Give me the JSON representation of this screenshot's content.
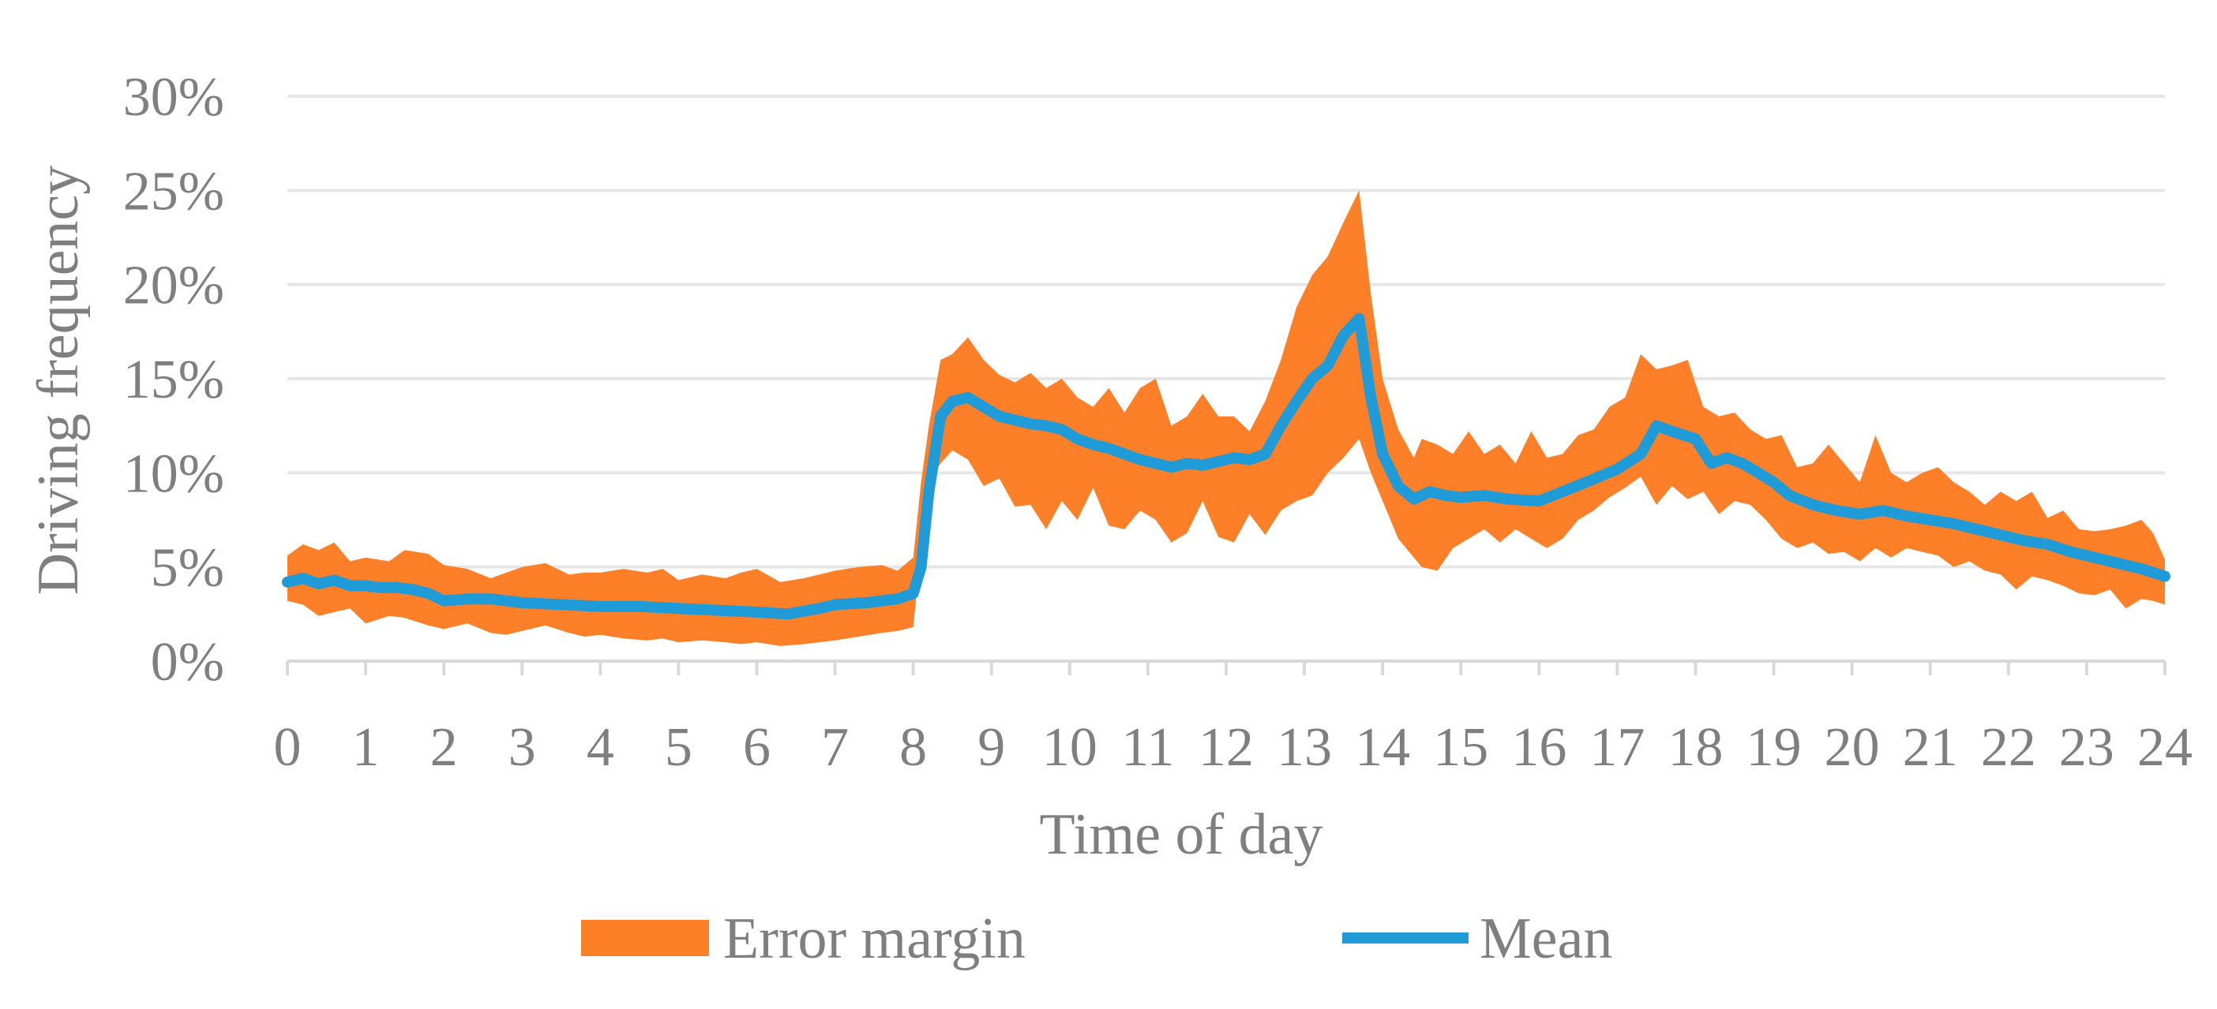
{
  "chart_data": {
    "type": "area",
    "title": "",
    "xlabel": "Time of day",
    "ylabel": "Driving frequency",
    "xlim": [
      0,
      24
    ],
    "ylim": [
      0,
      30
    ],
    "x_ticks": [
      "0",
      "1",
      "2",
      "3",
      "4",
      "5",
      "6",
      "7",
      "8",
      "9",
      "10",
      "11",
      "12",
      "13",
      "14",
      "15",
      "16",
      "17",
      "18",
      "19",
      "20",
      "21",
      "22",
      "23",
      "24"
    ],
    "y_ticks": [
      "0%",
      "5%",
      "10%",
      "15%",
      "20%",
      "25%",
      "30%"
    ],
    "grid": true,
    "legend_position": "bottom",
    "colors": {
      "band": "#fd7f28",
      "mean": "#1f9bd7",
      "grid": "#e6e6e6",
      "text": "#7f7f7f"
    },
    "series": [
      {
        "name": "Error margin",
        "kind": "band",
        "points": [
          [
            0.0,
            5.6,
            3.2
          ],
          [
            0.2,
            6.2,
            3.0
          ],
          [
            0.4,
            5.9,
            2.4
          ],
          [
            0.6,
            6.3,
            2.6
          ],
          [
            0.8,
            5.3,
            2.8
          ],
          [
            1.0,
            5.5,
            2.0
          ],
          [
            1.3,
            5.3,
            2.4
          ],
          [
            1.5,
            5.9,
            2.3
          ],
          [
            1.8,
            5.7,
            1.9
          ],
          [
            2.0,
            5.1,
            1.7
          ],
          [
            2.3,
            4.9,
            2.0
          ],
          [
            2.6,
            4.4,
            1.5
          ],
          [
            2.8,
            4.7,
            1.4
          ],
          [
            3.0,
            5.0,
            1.6
          ],
          [
            3.3,
            5.2,
            1.9
          ],
          [
            3.6,
            4.6,
            1.5
          ],
          [
            3.8,
            4.7,
            1.3
          ],
          [
            4.0,
            4.7,
            1.4
          ],
          [
            4.3,
            4.9,
            1.2
          ],
          [
            4.6,
            4.7,
            1.1
          ],
          [
            4.8,
            4.9,
            1.2
          ],
          [
            5.0,
            4.3,
            1.0
          ],
          [
            5.3,
            4.6,
            1.1
          ],
          [
            5.6,
            4.4,
            1.0
          ],
          [
            5.8,
            4.7,
            0.9
          ],
          [
            6.0,
            4.9,
            1.0
          ],
          [
            6.3,
            4.2,
            0.8
          ],
          [
            6.6,
            4.4,
            0.9
          ],
          [
            6.8,
            4.6,
            1.0
          ],
          [
            7.0,
            4.8,
            1.1
          ],
          [
            7.3,
            5.0,
            1.3
          ],
          [
            7.6,
            5.1,
            1.5
          ],
          [
            7.8,
            4.8,
            1.6
          ],
          [
            8.0,
            5.5,
            1.8
          ],
          [
            8.1,
            9.5,
            6.0
          ],
          [
            8.2,
            12.5,
            9.5
          ],
          [
            8.35,
            16.0,
            10.5
          ],
          [
            8.5,
            16.3,
            11.2
          ],
          [
            8.7,
            17.2,
            10.7
          ],
          [
            8.9,
            16.0,
            9.3
          ],
          [
            9.1,
            15.2,
            9.7
          ],
          [
            9.3,
            14.8,
            8.2
          ],
          [
            9.5,
            15.3,
            8.3
          ],
          [
            9.7,
            14.5,
            7.0
          ],
          [
            9.9,
            15.0,
            8.5
          ],
          [
            10.1,
            14.0,
            7.5
          ],
          [
            10.3,
            13.5,
            9.2
          ],
          [
            10.5,
            14.5,
            7.2
          ],
          [
            10.7,
            13.2,
            7.0
          ],
          [
            10.9,
            14.5,
            8.0
          ],
          [
            11.1,
            15.0,
            7.5
          ],
          [
            11.3,
            12.5,
            6.3
          ],
          [
            11.5,
            13.0,
            6.8
          ],
          [
            11.7,
            14.2,
            8.5
          ],
          [
            11.9,
            13.0,
            6.6
          ],
          [
            12.1,
            13.0,
            6.3
          ],
          [
            12.3,
            12.2,
            7.8
          ],
          [
            12.5,
            13.8,
            6.7
          ],
          [
            12.7,
            16.0,
            8.0
          ],
          [
            12.9,
            18.8,
            8.5
          ],
          [
            13.1,
            20.5,
            8.8
          ],
          [
            13.3,
            21.5,
            10.0
          ],
          [
            13.5,
            23.3,
            10.8
          ],
          [
            13.7,
            25.0,
            11.8
          ],
          [
            13.85,
            19.5,
            10.0
          ],
          [
            14.0,
            15.0,
            8.5
          ],
          [
            14.2,
            12.3,
            6.5
          ],
          [
            14.4,
            10.8,
            5.5
          ],
          [
            14.5,
            11.8,
            5.0
          ],
          [
            14.7,
            11.5,
            4.8
          ],
          [
            14.9,
            11.0,
            6.0
          ],
          [
            15.1,
            12.2,
            6.5
          ],
          [
            15.3,
            11.0,
            7.0
          ],
          [
            15.5,
            11.5,
            6.3
          ],
          [
            15.7,
            10.5,
            7.0
          ],
          [
            15.9,
            12.2,
            6.5
          ],
          [
            16.1,
            10.8,
            6.0
          ],
          [
            16.3,
            11.0,
            6.5
          ],
          [
            16.5,
            12.0,
            7.5
          ],
          [
            16.7,
            12.3,
            8.0
          ],
          [
            16.9,
            13.5,
            8.7
          ],
          [
            17.1,
            14.0,
            9.2
          ],
          [
            17.3,
            16.3,
            9.8
          ],
          [
            17.5,
            15.5,
            8.3
          ],
          [
            17.7,
            15.7,
            9.3
          ],
          [
            17.9,
            16.0,
            8.6
          ],
          [
            18.1,
            13.5,
            9.0
          ],
          [
            18.3,
            13.0,
            7.8
          ],
          [
            18.5,
            13.2,
            8.5
          ],
          [
            18.7,
            12.3,
            8.3
          ],
          [
            18.9,
            11.8,
            7.5
          ],
          [
            19.1,
            12.0,
            6.5
          ],
          [
            19.3,
            10.3,
            6.0
          ],
          [
            19.5,
            10.5,
            6.3
          ],
          [
            19.7,
            11.5,
            5.7
          ],
          [
            19.9,
            10.5,
            5.8
          ],
          [
            20.1,
            9.5,
            5.3
          ],
          [
            20.3,
            12.0,
            6.0
          ],
          [
            20.5,
            10.0,
            5.5
          ],
          [
            20.7,
            9.5,
            6.0
          ],
          [
            20.9,
            10.0,
            5.8
          ],
          [
            21.1,
            10.3,
            5.6
          ],
          [
            21.3,
            9.5,
            5.0
          ],
          [
            21.5,
            9.0,
            5.3
          ],
          [
            21.7,
            8.3,
            4.8
          ],
          [
            21.9,
            9.0,
            4.6
          ],
          [
            22.1,
            8.5,
            3.8
          ],
          [
            22.3,
            9.0,
            4.5
          ],
          [
            22.5,
            7.6,
            4.3
          ],
          [
            22.7,
            8.0,
            4.0
          ],
          [
            22.9,
            7.0,
            3.6
          ],
          [
            23.1,
            6.9,
            3.5
          ],
          [
            23.3,
            7.0,
            3.8
          ],
          [
            23.5,
            7.2,
            2.8
          ],
          [
            23.7,
            7.5,
            3.3
          ],
          [
            23.85,
            6.8,
            3.2
          ],
          [
            24.0,
            5.4,
            3.0
          ]
        ]
      },
      {
        "name": "Mean",
        "kind": "line",
        "points": [
          [
            0.0,
            4.2
          ],
          [
            0.2,
            4.4
          ],
          [
            0.4,
            4.1
          ],
          [
            0.6,
            4.3
          ],
          [
            0.8,
            4.0
          ],
          [
            1.0,
            4.0
          ],
          [
            1.2,
            3.9
          ],
          [
            1.4,
            3.9
          ],
          [
            1.6,
            3.8
          ],
          [
            1.8,
            3.6
          ],
          [
            2.0,
            3.2
          ],
          [
            2.3,
            3.3
          ],
          [
            2.6,
            3.3
          ],
          [
            3.0,
            3.1
          ],
          [
            3.5,
            3.0
          ],
          [
            4.0,
            2.9
          ],
          [
            4.5,
            2.9
          ],
          [
            5.0,
            2.8
          ],
          [
            5.5,
            2.7
          ],
          [
            6.0,
            2.6
          ],
          [
            6.4,
            2.5
          ],
          [
            6.8,
            2.8
          ],
          [
            7.0,
            3.0
          ],
          [
            7.4,
            3.1
          ],
          [
            7.8,
            3.3
          ],
          [
            8.0,
            3.6
          ],
          [
            8.1,
            5.0
          ],
          [
            8.2,
            9.0
          ],
          [
            8.35,
            13.0
          ],
          [
            8.5,
            13.8
          ],
          [
            8.7,
            14.0
          ],
          [
            8.9,
            13.5
          ],
          [
            9.1,
            13.0
          ],
          [
            9.3,
            12.8
          ],
          [
            9.5,
            12.6
          ],
          [
            9.7,
            12.5
          ],
          [
            9.9,
            12.3
          ],
          [
            10.1,
            11.8
          ],
          [
            10.3,
            11.5
          ],
          [
            10.5,
            11.3
          ],
          [
            10.7,
            11.0
          ],
          [
            10.9,
            10.7
          ],
          [
            11.1,
            10.5
          ],
          [
            11.3,
            10.3
          ],
          [
            11.5,
            10.5
          ],
          [
            11.7,
            10.4
          ],
          [
            11.9,
            10.6
          ],
          [
            12.1,
            10.8
          ],
          [
            12.3,
            10.7
          ],
          [
            12.5,
            11.0
          ],
          [
            12.7,
            12.5
          ],
          [
            12.9,
            13.8
          ],
          [
            13.1,
            15.0
          ],
          [
            13.3,
            15.7
          ],
          [
            13.5,
            17.3
          ],
          [
            13.7,
            18.2
          ],
          [
            13.85,
            14.0
          ],
          [
            14.0,
            11.0
          ],
          [
            14.2,
            9.3
          ],
          [
            14.4,
            8.6
          ],
          [
            14.6,
            9.0
          ],
          [
            14.8,
            8.8
          ],
          [
            15.0,
            8.7
          ],
          [
            15.3,
            8.8
          ],
          [
            15.6,
            8.6
          ],
          [
            16.0,
            8.5
          ],
          [
            16.3,
            9.0
          ],
          [
            16.6,
            9.5
          ],
          [
            17.0,
            10.2
          ],
          [
            17.3,
            11.0
          ],
          [
            17.5,
            12.5
          ],
          [
            17.7,
            12.2
          ],
          [
            18.0,
            11.8
          ],
          [
            18.2,
            10.5
          ],
          [
            18.4,
            10.8
          ],
          [
            18.6,
            10.5
          ],
          [
            18.8,
            10.0
          ],
          [
            19.0,
            9.5
          ],
          [
            19.2,
            8.8
          ],
          [
            19.5,
            8.3
          ],
          [
            19.8,
            8.0
          ],
          [
            20.1,
            7.8
          ],
          [
            20.4,
            8.0
          ],
          [
            20.7,
            7.7
          ],
          [
            21.0,
            7.5
          ],
          [
            21.3,
            7.3
          ],
          [
            21.6,
            7.0
          ],
          [
            21.9,
            6.7
          ],
          [
            22.2,
            6.4
          ],
          [
            22.5,
            6.2
          ],
          [
            22.8,
            5.8
          ],
          [
            23.1,
            5.5
          ],
          [
            23.4,
            5.2
          ],
          [
            23.7,
            4.9
          ],
          [
            24.0,
            4.5
          ]
        ]
      }
    ]
  }
}
